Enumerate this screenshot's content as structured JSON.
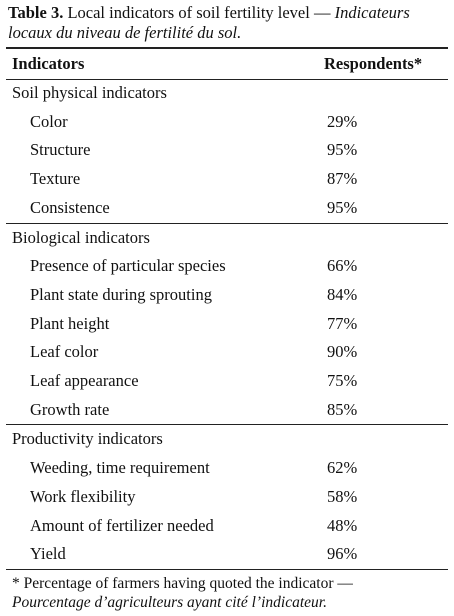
{
  "table": {
    "label": "Table 3.",
    "title": "Local indicators of soil fertility level —",
    "title_fr": "Indicateurs locaux du niveau de fertilité du sol.",
    "columns": [
      "Indicators",
      "Respondents*"
    ],
    "groups": [
      {
        "name": "Soil physical indicators",
        "rows": [
          [
            "Color",
            "29%"
          ],
          [
            "Structure",
            "95%"
          ],
          [
            "Texture",
            "87%"
          ],
          [
            "Consistence",
            "95%"
          ]
        ]
      },
      {
        "name": "Biological indicators",
        "rows": [
          [
            "Presence of particular species",
            "66%"
          ],
          [
            "Plant state during sprouting",
            "84%"
          ],
          [
            "Plant height",
            "77%"
          ],
          [
            "Leaf color",
            "90%"
          ],
          [
            "Leaf appearance",
            "75%"
          ],
          [
            "Growth rate",
            "85%"
          ]
        ]
      },
      {
        "name": "Productivity indicators",
        "rows": [
          [
            "Weeding, time requirement",
            "62%"
          ],
          [
            "Work flexibility",
            "58%"
          ],
          [
            "Amount of fertilizer needed",
            "48%"
          ],
          [
            "Yield",
            "96%"
          ]
        ]
      }
    ]
  },
  "footnote": {
    "en": "* Percentage of farmers having quoted the indicator —",
    "fr": "Pourcentage d’agriculteurs ayant cité l’indicateur."
  }
}
